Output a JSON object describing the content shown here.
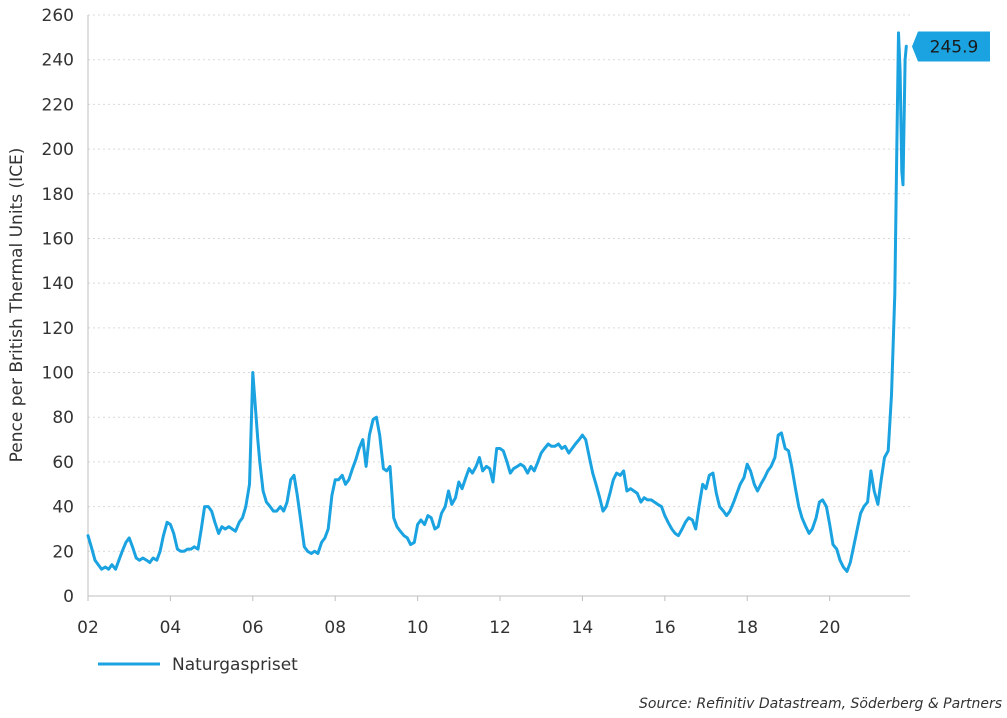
{
  "chart_data": {
    "type": "line",
    "ylabel": "Pence per British Thermal Units (ICE)",
    "xlabel": "",
    "ylim": [
      0,
      260
    ],
    "yticks": [
      0,
      20,
      40,
      60,
      80,
      100,
      120,
      140,
      160,
      180,
      200,
      220,
      240,
      260
    ],
    "xlim": [
      2002,
      2021.95
    ],
    "xticks": [
      {
        "x": 2002,
        "label": "02"
      },
      {
        "x": 2004,
        "label": "04"
      },
      {
        "x": 2006,
        "label": "06"
      },
      {
        "x": 2008,
        "label": "08"
      },
      {
        "x": 2010,
        "label": "10"
      },
      {
        "x": 2012,
        "label": "12"
      },
      {
        "x": 2014,
        "label": "14"
      },
      {
        "x": 2016,
        "label": "16"
      },
      {
        "x": 2018,
        "label": "18"
      },
      {
        "x": 2020,
        "label": "20"
      }
    ],
    "grid": "horizontal-dotted",
    "legend_position": "bottom-left",
    "series": [
      {
        "name": "Naturgaspriset",
        "color": "#1aa3e0",
        "last_value_label": "245.9",
        "points": [
          [
            2002.0,
            27
          ],
          [
            2002.08,
            22
          ],
          [
            2002.17,
            16
          ],
          [
            2002.25,
            14
          ],
          [
            2002.33,
            12
          ],
          [
            2002.42,
            13
          ],
          [
            2002.5,
            12
          ],
          [
            2002.58,
            14
          ],
          [
            2002.67,
            12
          ],
          [
            2002.75,
            16
          ],
          [
            2002.83,
            20
          ],
          [
            2002.92,
            24
          ],
          [
            2003.0,
            26
          ],
          [
            2003.08,
            22
          ],
          [
            2003.17,
            17
          ],
          [
            2003.25,
            16
          ],
          [
            2003.33,
            17
          ],
          [
            2003.42,
            16
          ],
          [
            2003.5,
            15
          ],
          [
            2003.58,
            17
          ],
          [
            2003.67,
            16
          ],
          [
            2003.75,
            20
          ],
          [
            2003.83,
            27
          ],
          [
            2003.92,
            33
          ],
          [
            2004.0,
            32
          ],
          [
            2004.08,
            28
          ],
          [
            2004.17,
            21
          ],
          [
            2004.25,
            20
          ],
          [
            2004.33,
            20
          ],
          [
            2004.42,
            21
          ],
          [
            2004.5,
            21
          ],
          [
            2004.58,
            22
          ],
          [
            2004.67,
            21
          ],
          [
            2004.75,
            30
          ],
          [
            2004.83,
            40
          ],
          [
            2004.92,
            40
          ],
          [
            2005.0,
            38
          ],
          [
            2005.08,
            33
          ],
          [
            2005.17,
            28
          ],
          [
            2005.25,
            31
          ],
          [
            2005.33,
            30
          ],
          [
            2005.42,
            31
          ],
          [
            2005.5,
            30
          ],
          [
            2005.58,
            29
          ],
          [
            2005.67,
            33
          ],
          [
            2005.75,
            35
          ],
          [
            2005.83,
            40
          ],
          [
            2005.92,
            50
          ],
          [
            2006.0,
            100
          ],
          [
            2006.06,
            85
          ],
          [
            2006.12,
            70
          ],
          [
            2006.17,
            60
          ],
          [
            2006.25,
            47
          ],
          [
            2006.33,
            42
          ],
          [
            2006.42,
            40
          ],
          [
            2006.5,
            38
          ],
          [
            2006.58,
            38
          ],
          [
            2006.67,
            40
          ],
          [
            2006.75,
            38
          ],
          [
            2006.83,
            42
          ],
          [
            2006.92,
            52
          ],
          [
            2007.0,
            54
          ],
          [
            2007.08,
            45
          ],
          [
            2007.17,
            33
          ],
          [
            2007.25,
            22
          ],
          [
            2007.33,
            20
          ],
          [
            2007.42,
            19
          ],
          [
            2007.5,
            20
          ],
          [
            2007.58,
            19
          ],
          [
            2007.67,
            24
          ],
          [
            2007.75,
            26
          ],
          [
            2007.83,
            30
          ],
          [
            2007.92,
            45
          ],
          [
            2008.0,
            52
          ],
          [
            2008.08,
            52
          ],
          [
            2008.17,
            54
          ],
          [
            2008.25,
            50
          ],
          [
            2008.33,
            52
          ],
          [
            2008.42,
            57
          ],
          [
            2008.5,
            61
          ],
          [
            2008.58,
            66
          ],
          [
            2008.67,
            70
          ],
          [
            2008.75,
            58
          ],
          [
            2008.83,
            72
          ],
          [
            2008.92,
            79
          ],
          [
            2009.0,
            80
          ],
          [
            2009.08,
            72
          ],
          [
            2009.17,
            57
          ],
          [
            2009.25,
            56
          ],
          [
            2009.33,
            58
          ],
          [
            2009.42,
            35
          ],
          [
            2009.5,
            31
          ],
          [
            2009.58,
            29
          ],
          [
            2009.67,
            27
          ],
          [
            2009.75,
            26
          ],
          [
            2009.83,
            23
          ],
          [
            2009.92,
            24
          ],
          [
            2010.0,
            32
          ],
          [
            2010.08,
            34
          ],
          [
            2010.17,
            32
          ],
          [
            2010.25,
            36
          ],
          [
            2010.33,
            35
          ],
          [
            2010.42,
            30
          ],
          [
            2010.5,
            31
          ],
          [
            2010.58,
            37
          ],
          [
            2010.67,
            40
          ],
          [
            2010.75,
            47
          ],
          [
            2010.83,
            41
          ],
          [
            2010.92,
            44
          ],
          [
            2011.0,
            51
          ],
          [
            2011.08,
            48
          ],
          [
            2011.17,
            53
          ],
          [
            2011.25,
            57
          ],
          [
            2011.33,
            55
          ],
          [
            2011.42,
            58
          ],
          [
            2011.5,
            62
          ],
          [
            2011.58,
            56
          ],
          [
            2011.67,
            58
          ],
          [
            2011.75,
            57
          ],
          [
            2011.83,
            51
          ],
          [
            2011.92,
            66
          ],
          [
            2012.0,
            66
          ],
          [
            2012.08,
            65
          ],
          [
            2012.17,
            60
          ],
          [
            2012.25,
            55
          ],
          [
            2012.33,
            57
          ],
          [
            2012.42,
            58
          ],
          [
            2012.5,
            59
          ],
          [
            2012.58,
            58
          ],
          [
            2012.67,
            55
          ],
          [
            2012.75,
            58
          ],
          [
            2012.83,
            56
          ],
          [
            2012.92,
            60
          ],
          [
            2013.0,
            64
          ],
          [
            2013.08,
            66
          ],
          [
            2013.17,
            68
          ],
          [
            2013.25,
            67
          ],
          [
            2013.33,
            67
          ],
          [
            2013.42,
            68
          ],
          [
            2013.5,
            66
          ],
          [
            2013.58,
            67
          ],
          [
            2013.67,
            64
          ],
          [
            2013.75,
            66
          ],
          [
            2013.83,
            68
          ],
          [
            2013.92,
            70
          ],
          [
            2014.0,
            72
          ],
          [
            2014.08,
            70
          ],
          [
            2014.17,
            62
          ],
          [
            2014.25,
            55
          ],
          [
            2014.33,
            50
          ],
          [
            2014.42,
            44
          ],
          [
            2014.5,
            38
          ],
          [
            2014.58,
            40
          ],
          [
            2014.67,
            46
          ],
          [
            2014.75,
            52
          ],
          [
            2014.83,
            55
          ],
          [
            2014.92,
            54
          ],
          [
            2015.0,
            56
          ],
          [
            2015.08,
            47
          ],
          [
            2015.17,
            48
          ],
          [
            2015.25,
            47
          ],
          [
            2015.33,
            46
          ],
          [
            2015.42,
            42
          ],
          [
            2015.5,
            44
          ],
          [
            2015.58,
            43
          ],
          [
            2015.67,
            43
          ],
          [
            2015.75,
            42
          ],
          [
            2015.83,
            41
          ],
          [
            2015.92,
            40
          ],
          [
            2016.0,
            36
          ],
          [
            2016.08,
            33
          ],
          [
            2016.17,
            30
          ],
          [
            2016.25,
            28
          ],
          [
            2016.33,
            27
          ],
          [
            2016.42,
            30
          ],
          [
            2016.5,
            33
          ],
          [
            2016.58,
            35
          ],
          [
            2016.67,
            34
          ],
          [
            2016.75,
            30
          ],
          [
            2016.83,
            40
          ],
          [
            2016.92,
            50
          ],
          [
            2017.0,
            48
          ],
          [
            2017.08,
            54
          ],
          [
            2017.17,
            55
          ],
          [
            2017.25,
            46
          ],
          [
            2017.33,
            40
          ],
          [
            2017.42,
            38
          ],
          [
            2017.5,
            36
          ],
          [
            2017.58,
            38
          ],
          [
            2017.67,
            42
          ],
          [
            2017.75,
            46
          ],
          [
            2017.83,
            50
          ],
          [
            2017.92,
            53
          ],
          [
            2018.0,
            59
          ],
          [
            2018.08,
            56
          ],
          [
            2018.17,
            50
          ],
          [
            2018.25,
            47
          ],
          [
            2018.33,
            50
          ],
          [
            2018.42,
            53
          ],
          [
            2018.5,
            56
          ],
          [
            2018.58,
            58
          ],
          [
            2018.67,
            62
          ],
          [
            2018.75,
            72
          ],
          [
            2018.83,
            73
          ],
          [
            2018.92,
            66
          ],
          [
            2019.0,
            65
          ],
          [
            2019.08,
            58
          ],
          [
            2019.17,
            48
          ],
          [
            2019.25,
            40
          ],
          [
            2019.33,
            35
          ],
          [
            2019.42,
            31
          ],
          [
            2019.5,
            28
          ],
          [
            2019.58,
            30
          ],
          [
            2019.67,
            35
          ],
          [
            2019.75,
            42
          ],
          [
            2019.83,
            43
          ],
          [
            2019.92,
            40
          ],
          [
            2020.0,
            32
          ],
          [
            2020.08,
            23
          ],
          [
            2020.17,
            21
          ],
          [
            2020.25,
            16
          ],
          [
            2020.33,
            13
          ],
          [
            2020.42,
            11
          ],
          [
            2020.5,
            15
          ],
          [
            2020.58,
            22
          ],
          [
            2020.67,
            30
          ],
          [
            2020.75,
            37
          ],
          [
            2020.83,
            40
          ],
          [
            2020.92,
            42
          ],
          [
            2021.0,
            56
          ],
          [
            2021.08,
            47
          ],
          [
            2021.17,
            41
          ],
          [
            2021.25,
            52
          ],
          [
            2021.33,
            62
          ],
          [
            2021.42,
            65
          ],
          [
            2021.5,
            90
          ],
          [
            2021.58,
            135
          ],
          [
            2021.63,
            200
          ],
          [
            2021.67,
            252
          ],
          [
            2021.71,
            235
          ],
          [
            2021.75,
            190
          ],
          [
            2021.78,
            184
          ],
          [
            2021.83,
            240
          ],
          [
            2021.86,
            246
          ]
        ]
      }
    ]
  },
  "source_text": "Source: Refinitiv Datastream, Söderberg & Partners"
}
